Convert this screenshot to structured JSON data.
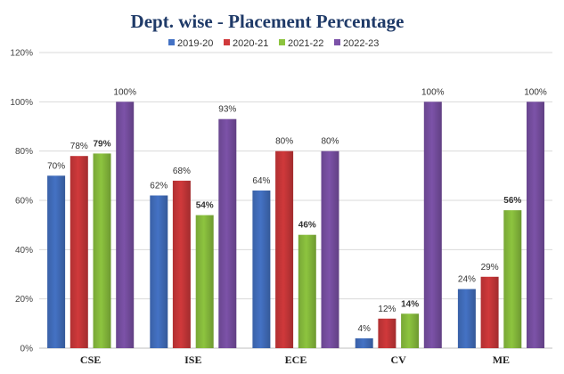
{
  "chart_data": {
    "type": "bar",
    "title": "Dept. wise - Placement Percentage",
    "categories": [
      "CSE",
      "ISE",
      "ECE",
      "CV",
      "ME"
    ],
    "series": [
      {
        "name": "2019-20",
        "color": "#4472c4",
        "values": [
          70,
          62,
          64,
          4,
          24
        ],
        "labels": [
          "70%",
          "62%",
          "64%",
          "4%",
          "24%"
        ]
      },
      {
        "name": "2020-21",
        "color": "#d0393b",
        "values": [
          78,
          68,
          80,
          12,
          29
        ],
        "labels": [
          "78%",
          "68%",
          "80%",
          "12%",
          "29%"
        ]
      },
      {
        "name": "2021-22",
        "color": "#8dc43f",
        "values": [
          79,
          54,
          46,
          14,
          56
        ],
        "labels": [
          "79%",
          "54%",
          "46%",
          "14%",
          "56%"
        ]
      },
      {
        "name": "2022-23",
        "color": "#7c52a8",
        "values": [
          100,
          93,
          80,
          100,
          100
        ],
        "labels": [
          "100%",
          "93%",
          "80%",
          "100%",
          "100%"
        ]
      }
    ],
    "ylim": [
      0,
      120
    ],
    "yticks": [
      "0%",
      "20%",
      "40%",
      "60%",
      "80%",
      "100%",
      "120%"
    ],
    "grid": true,
    "legend_position": "top"
  }
}
